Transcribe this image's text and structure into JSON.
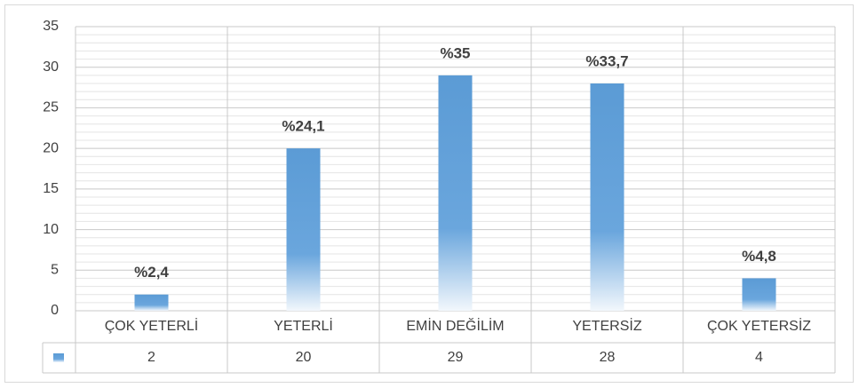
{
  "chart_data": {
    "type": "bar",
    "categories": [
      "ÇOK YETERLİ",
      "YETERLİ",
      "EMİN DEĞİLİM",
      "YETERSİZ",
      "ÇOK YETERSİZ"
    ],
    "values": [
      2,
      20,
      29,
      28,
      4
    ],
    "annotations": [
      "%2,4",
      "%24,1",
      "%35",
      "%33,7",
      "%4,8"
    ],
    "color": "#5b9bd5",
    "ylim": [
      0,
      35
    ],
    "yticks": [
      0,
      5,
      10,
      15,
      20,
      25,
      30,
      35
    ],
    "grid": true,
    "minor_grid": true,
    "data_table": true
  }
}
